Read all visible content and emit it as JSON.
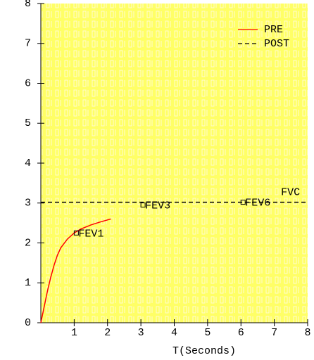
{
  "chart_data": {
    "type": "line",
    "x_label": "T(Seconds)",
    "xlim": [
      0,
      8
    ],
    "xticks": [
      1,
      2,
      3,
      4,
      5,
      6,
      7,
      8
    ],
    "ylim": [
      0,
      8
    ],
    "yticks": [
      0,
      1,
      2,
      3,
      4,
      5,
      6,
      7,
      8
    ],
    "legend": "top-right",
    "series": [
      {
        "name": "PRE",
        "color": "#ff0000",
        "label_color": "#ff0000",
        "dash": false,
        "x": [
          0,
          0.1,
          0.2,
          0.3,
          0.4,
          0.5,
          0.6,
          0.8,
          1.0,
          1.2,
          1.5,
          1.8,
          2.1
        ],
        "values": [
          0,
          0.4,
          0.8,
          1.15,
          1.45,
          1.7,
          1.88,
          2.1,
          2.25,
          2.35,
          2.45,
          2.53,
          2.6
        ]
      },
      {
        "name": "POST",
        "color": "#000000",
        "label_color": "#0000ff",
        "dash": true,
        "x": [
          0,
          8
        ],
        "values": [
          3.02,
          3.02
        ]
      }
    ],
    "annotations": [
      {
        "text": "FEV1",
        "x": 1.0,
        "y": 2.25,
        "marker": true
      },
      {
        "text": "FEV3",
        "x": 3.0,
        "y": 2.95,
        "marker": true
      },
      {
        "text": "FEV6",
        "x": 6.0,
        "y": 3.02,
        "marker": true
      },
      {
        "text": "FVC",
        "x": 7.2,
        "y": 3.2,
        "marker": false
      }
    ]
  }
}
